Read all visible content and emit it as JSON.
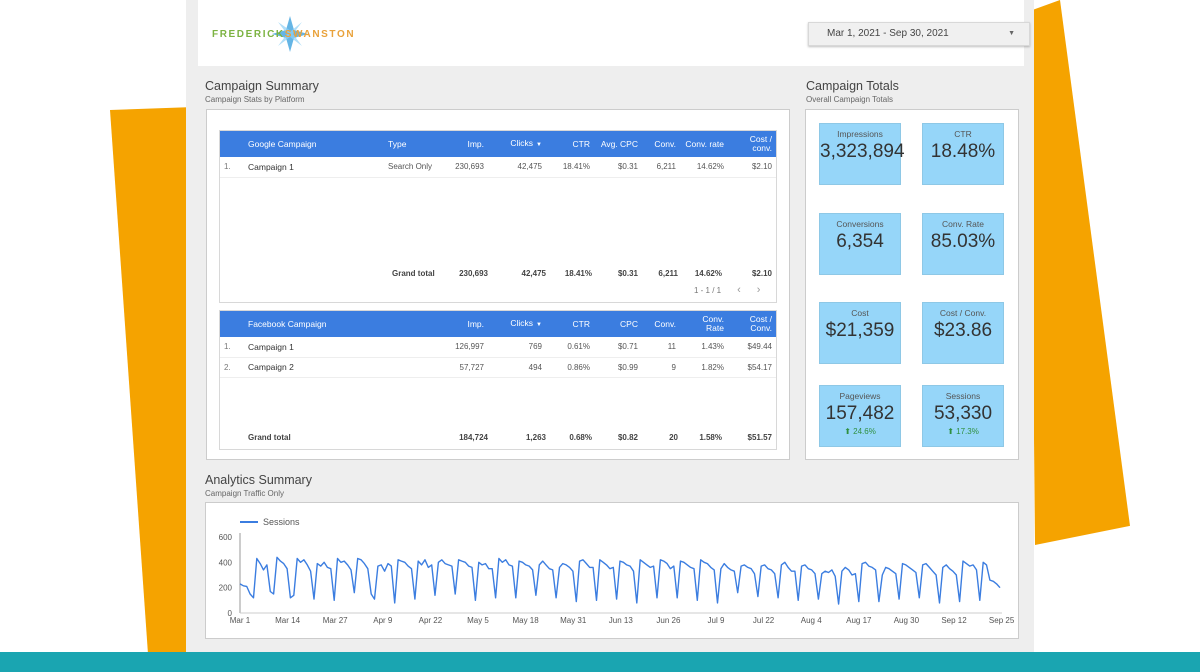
{
  "header": {
    "logo_left": "FREDERICK",
    "logo_right": "SWANSTON",
    "date_range": "Mar 1, 2021 - Sep 30, 2021"
  },
  "summary": {
    "title": "Campaign Summary",
    "subtitle": "Campaign Stats by Platform"
  },
  "google_table": {
    "headers": [
      "Google Campaign",
      "Type",
      "Imp.",
      "Clicks",
      "CTR",
      "Avg. CPC",
      "Conv.",
      "Conv. rate",
      "Cost / conv."
    ],
    "rows": [
      [
        "1.",
        "Campaign 1",
        "Search Only",
        "230,693",
        "42,475",
        "18.41%",
        "$0.31",
        "6,211",
        "14.62%",
        "$2.10"
      ]
    ],
    "grand_label": "Grand total",
    "grand": [
      "230,693",
      "42,475",
      "18.41%",
      "$0.31",
      "6,211",
      "14.62%",
      "$2.10"
    ],
    "pager": "1 - 1 / 1"
  },
  "facebook_table": {
    "headers": [
      "Facebook Campaign",
      "Imp.",
      "Clicks",
      "CTR",
      "CPC",
      "Conv.",
      "Conv. Rate",
      "Cost / Conv."
    ],
    "rows": [
      [
        "1.",
        "Campaign 1",
        "126,997",
        "769",
        "0.61%",
        "$0.71",
        "11",
        "1.43%",
        "$49.44"
      ],
      [
        "2.",
        "Campaign 2",
        "57,727",
        "494",
        "0.86%",
        "$0.99",
        "9",
        "1.82%",
        "$54.17"
      ]
    ],
    "grand_label": "Grand total",
    "grand": [
      "184,724",
      "1,263",
      "0.68%",
      "$0.82",
      "20",
      "1.58%",
      "$51.57"
    ]
  },
  "totals": {
    "title": "Campaign Totals",
    "subtitle": "Overall Campaign Totals",
    "kpis": [
      {
        "label": "Impressions",
        "value": "3,323,894"
      },
      {
        "label": "CTR",
        "value": "18.48%"
      },
      {
        "label": "Conversions",
        "value": "6,354"
      },
      {
        "label": "Conv. Rate",
        "value": "85.03%"
      },
      {
        "label": "Cost",
        "value": "$21,359"
      },
      {
        "label": "Cost / Conv.",
        "value": "$23.86"
      },
      {
        "label": "Pageviews",
        "value": "157,482",
        "change": "24.6%"
      },
      {
        "label": "Sessions",
        "value": "53,330",
        "change": "17.3%"
      }
    ]
  },
  "analytics": {
    "title": "Analytics Summary",
    "subtitle": "Campaign Traffic Only"
  },
  "colors": {
    "header_blue": "#3b7de0",
    "kpi_blue": "#96d6f9",
    "line_blue": "#3b7de0",
    "accent_orange": "#f5a300",
    "bottom_teal": "#1aa5b1",
    "positive_green": "#2f8f3f"
  },
  "chart_data": {
    "type": "line",
    "legend": [
      "Sessions"
    ],
    "x_tick_labels": [
      "Mar 1",
      "Mar 14",
      "Mar 27",
      "Apr 9",
      "Apr 22",
      "May 5",
      "May 18",
      "May 31",
      "Jun 13",
      "Jun 26",
      "Jul 9",
      "Jul 22",
      "Aug 4",
      "Aug 17",
      "Aug 30",
      "Sep 12",
      "Sep 25"
    ],
    "y_tick_labels": [
      "0",
      "200",
      "400",
      "600"
    ],
    "ylim": [
      0,
      600
    ],
    "series": [
      {
        "name": "Sessions",
        "values": [
          230,
          215,
          210,
          150,
          120,
          430,
          390,
          340,
          380,
          170,
          150,
          440,
          410,
          390,
          350,
          120,
          140,
          430,
          400,
          420,
          380,
          330,
          110,
          390,
          370,
          400,
          360,
          350,
          100,
          430,
          400,
          410,
          380,
          340,
          160,
          430,
          420,
          390,
          350,
          150,
          110,
          370,
          380,
          330,
          390,
          370,
          80,
          420,
          410,
          400,
          370,
          350,
          110,
          410,
          380,
          420,
          360,
          380,
          140,
          400,
          420,
          390,
          380,
          370,
          150,
          420,
          410,
          400,
          370,
          360,
          100,
          400,
          380,
          390,
          350,
          350,
          120,
          430,
          400,
          420,
          380,
          370,
          120,
          410,
          400,
          380,
          370,
          340,
          140,
          380,
          410,
          380,
          350,
          340,
          120,
          360,
          390,
          380,
          360,
          330,
          90,
          410,
          420,
          390,
          360,
          360,
          100,
          420,
          400,
          380,
          350,
          360,
          110,
          410,
          400,
          380,
          370,
          330,
          80,
          420,
          400,
          380,
          360,
          370,
          120,
          420,
          410,
          390,
          350,
          370,
          120,
          410,
          400,
          380,
          360,
          350,
          100,
          420,
          400,
          390,
          360,
          340,
          80,
          350,
          390,
          360,
          340,
          330,
          160,
          370,
          380,
          360,
          350,
          310,
          130,
          370,
          380,
          350,
          340,
          310,
          120,
          380,
          400,
          360,
          330,
          330,
          100,
          370,
          380,
          350,
          340,
          310,
          110,
          310,
          330,
          320,
          340,
          290,
          70,
          330,
          360,
          340,
          300,
          310,
          90,
          390,
          400,
          370,
          360,
          340,
          90,
          300,
          360,
          350,
          330,
          310,
          110,
          390,
          380,
          360,
          340,
          320,
          120,
          380,
          390,
          360,
          330,
          300,
          80,
          360,
          380,
          350,
          330,
          300,
          90,
          410,
          390,
          370,
          380,
          340,
          100,
          400,
          380,
          260,
          250,
          230,
          200
        ]
      }
    ]
  }
}
